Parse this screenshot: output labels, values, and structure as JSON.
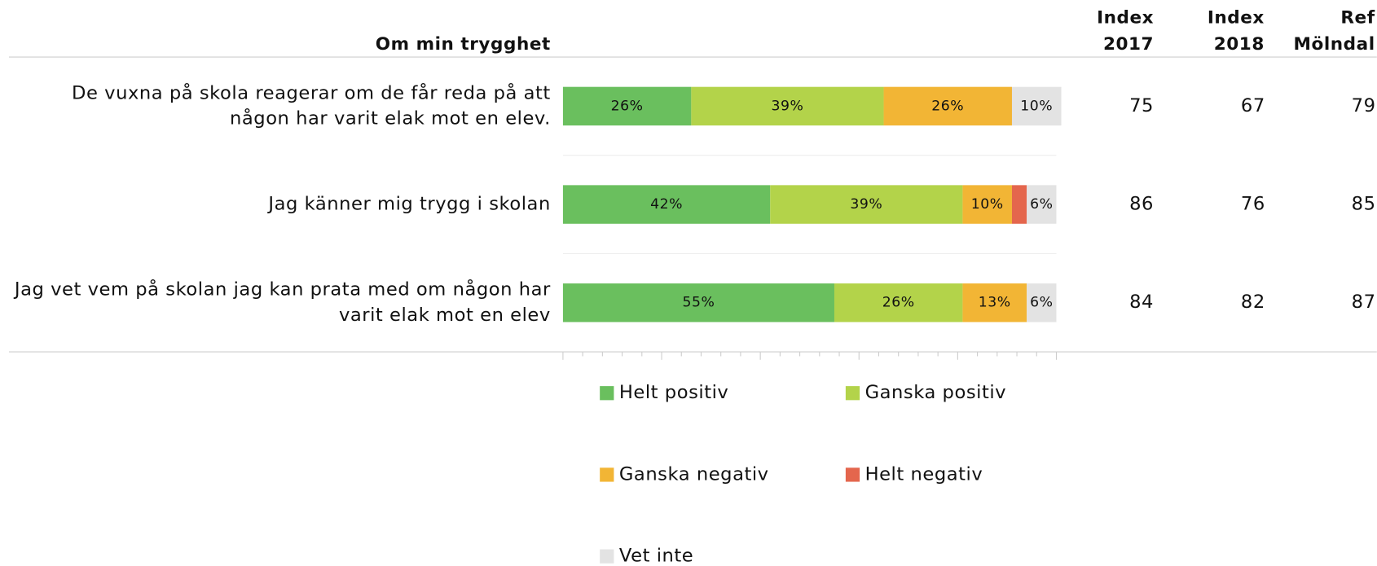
{
  "chart_data": {
    "type": "stacked-barh",
    "title": "Om min trygghet",
    "categories": [
      [
        "De vuxna på skola reagerar om de får reda på att",
        "någon har varit elak mot en elev."
      ],
      [
        "Jag känner mig trygg i skolan"
      ],
      [
        "Jag vet vem på skolan jag kan prata med om någon har",
        "varit elak mot en elev"
      ]
    ],
    "series": [
      {
        "name": "Helt positiv",
        "color": "#6abf5e",
        "values": [
          26,
          42,
          55
        ],
        "value_labels": [
          "26%",
          "42%",
          "55%"
        ]
      },
      {
        "name": "Ganska positiv",
        "color": "#b3d34a",
        "values": [
          39,
          39,
          26
        ],
        "value_labels": [
          "39%",
          "39%",
          "26%"
        ]
      },
      {
        "name": "Ganska negativ",
        "color": "#f2b535",
        "values": [
          26,
          10,
          13
        ],
        "value_labels": [
          "26%",
          "10%",
          "13%"
        ]
      },
      {
        "name": "Helt negativ",
        "color": "#e4664d",
        "values": [
          0,
          3,
          0
        ],
        "value_labels": [
          null,
          null,
          null
        ]
      },
      {
        "name": "Vet inte",
        "color": "#e3e3e3",
        "values": [
          10,
          6,
          6
        ],
        "value_labels": [
          "10%",
          "6%",
          "6%"
        ]
      }
    ],
    "xlim": [
      0,
      100
    ],
    "xticks": [
      0,
      4,
      8,
      12,
      16,
      20,
      24,
      28,
      32,
      36,
      40,
      44,
      48,
      52,
      56,
      60,
      64,
      68,
      72,
      76,
      80,
      84,
      88,
      92,
      96,
      100
    ]
  },
  "table": {
    "columns": [
      [
        "Index",
        "2017"
      ],
      [
        "Index",
        "2018"
      ],
      [
        "Ref",
        "Mölndal"
      ]
    ],
    "rows": [
      [
        75,
        67,
        79
      ],
      [
        86,
        76,
        85
      ],
      [
        84,
        82,
        87
      ]
    ]
  }
}
